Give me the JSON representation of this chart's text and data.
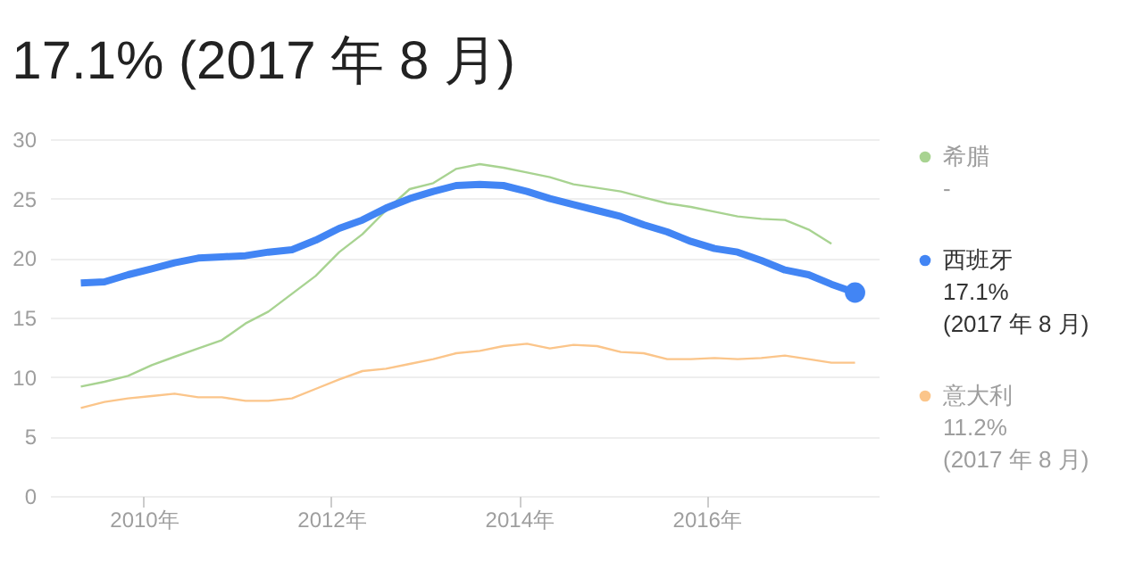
{
  "chart_data": {
    "type": "line",
    "title": "17.1% (2017 年 8 月)",
    "x": [
      "2009-05",
      "2009-08",
      "2009-11",
      "2010-02",
      "2010-05",
      "2010-08",
      "2010-11",
      "2011-02",
      "2011-05",
      "2011-08",
      "2011-11",
      "2012-02",
      "2012-05",
      "2012-08",
      "2012-11",
      "2013-02",
      "2013-05",
      "2013-08",
      "2013-11",
      "2014-02",
      "2014-05",
      "2014-08",
      "2014-11",
      "2015-02",
      "2015-05",
      "2015-08",
      "2015-11",
      "2016-02",
      "2016-05",
      "2016-08",
      "2016-11",
      "2017-02",
      "2017-05",
      "2017-08"
    ],
    "series": [
      {
        "name": "希腊",
        "color": "#a8d391",
        "values": [
          9.2,
          9.6,
          10.1,
          11.0,
          11.7,
          12.4,
          13.1,
          14.5,
          15.5,
          17.0,
          18.5,
          20.5,
          22.0,
          24.0,
          25.8,
          26.3,
          27.5,
          27.9,
          27.6,
          27.2,
          26.8,
          26.2,
          25.9,
          25.6,
          25.1,
          24.6,
          24.3,
          23.9,
          23.5,
          23.3,
          23.2,
          22.4,
          21.2,
          null
        ]
      },
      {
        "name": "西班牙",
        "color": "#4285f4",
        "values": [
          17.9,
          18.0,
          18.6,
          19.1,
          19.6,
          20.0,
          20.1,
          20.2,
          20.5,
          20.7,
          21.5,
          22.5,
          23.2,
          24.2,
          25.0,
          25.6,
          26.1,
          26.2,
          26.1,
          25.6,
          25.0,
          24.5,
          24.0,
          23.5,
          22.8,
          22.2,
          21.4,
          20.8,
          20.5,
          19.8,
          19.0,
          18.6,
          17.8,
          17.1
        ]
      },
      {
        "name": "意大利",
        "color": "#fbc58a",
        "values": [
          7.4,
          7.9,
          8.2,
          8.4,
          8.6,
          8.3,
          8.3,
          8.0,
          8.0,
          8.2,
          9.0,
          9.8,
          10.5,
          10.7,
          11.1,
          11.5,
          12.0,
          12.2,
          12.6,
          12.8,
          12.4,
          12.7,
          12.6,
          12.1,
          12.0,
          11.5,
          11.5,
          11.6,
          11.5,
          11.6,
          11.8,
          11.5,
          11.2,
          11.2
        ]
      },
      {
        "type": "scatter",
        "marker": "circle",
        "color": "#4285f4",
        "x": [
          "2017-08"
        ],
        "values": [
          17.1
        ]
      }
    ],
    "annotations": [
      "-",
      "17.1%\n(2017 年 8 月)",
      "11.2%\n(2017 年 8 月)"
    ],
    "xlim": [
      "2009-01",
      "2017-11"
    ],
    "xticks": [
      {
        "value": "2010-01",
        "label": "2010年"
      },
      {
        "value": "2012-01",
        "label": "2012年"
      },
      {
        "value": "2014-01",
        "label": "2014年"
      },
      {
        "value": "2016-01",
        "label": "2016年"
      }
    ],
    "ylim": [
      0,
      30
    ],
    "yticks": [
      0,
      5,
      10,
      15,
      20,
      25,
      30
    ],
    "grid": "y",
    "legend": "right",
    "marker": "none"
  }
}
